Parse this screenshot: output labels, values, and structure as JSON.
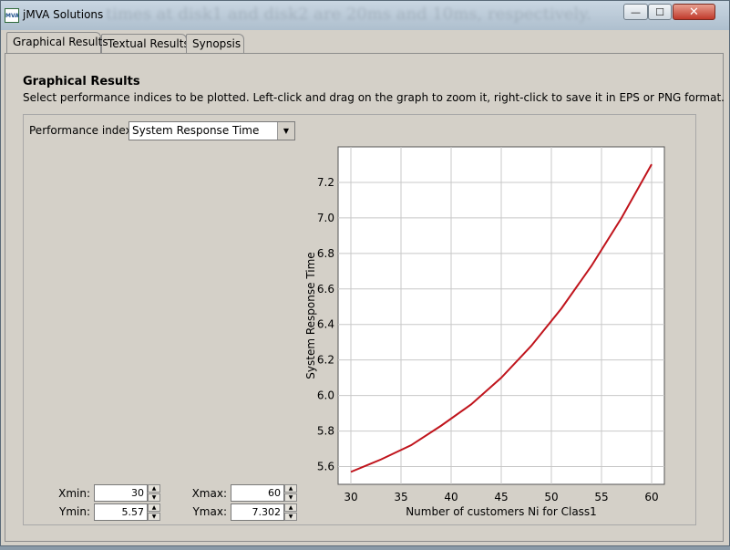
{
  "window": {
    "title": "jMVA Solutions",
    "background_text": "times at disk1 and disk2 are 20ms and 10ms, respectively.",
    "app_icon": "MVA",
    "controls": {
      "minimize": "—",
      "maximize": "☐",
      "close": "✕"
    }
  },
  "tabs": [
    {
      "label": "Graphical Results",
      "active": true
    },
    {
      "label": "Textual Results",
      "active": false
    },
    {
      "label": "Synopsis",
      "active": false
    }
  ],
  "content": {
    "title": "Graphical Results",
    "description": "Select performance indices to be plotted. Left-click and drag on the graph to zoom it, right-click to save it in EPS or PNG format.",
    "performance_index_label": "Performance index:",
    "performance_index_value": "System Response Time"
  },
  "ranges": {
    "xmin_label": "Xmin:",
    "xmin": "30",
    "xmax_label": "Xmax:",
    "xmax": "60",
    "ymin_label": "Ymin:",
    "ymin": "5.57",
    "ymax_label": "Ymax:",
    "ymax": "7.302"
  },
  "chart_data": {
    "type": "line",
    "xlabel": "Number of customers Ni for Class1",
    "ylabel": "System Response Time",
    "xlim": [
      30,
      60
    ],
    "ylim": [
      5.5,
      7.4
    ],
    "xticks": [
      30,
      35,
      40,
      45,
      50,
      55,
      60
    ],
    "yticks": [
      5.6,
      5.8,
      6.0,
      6.2,
      6.4,
      6.6,
      6.8,
      7.0,
      7.2
    ],
    "grid": true,
    "line_color": "#c0141c",
    "series": [
      {
        "x": [
          30,
          33,
          36,
          39,
          42,
          45,
          48,
          51,
          54,
          57,
          60
        ],
        "values": [
          5.57,
          5.64,
          5.72,
          5.83,
          5.95,
          6.1,
          6.28,
          6.49,
          6.73,
          7.0,
          7.302
        ]
      }
    ]
  }
}
